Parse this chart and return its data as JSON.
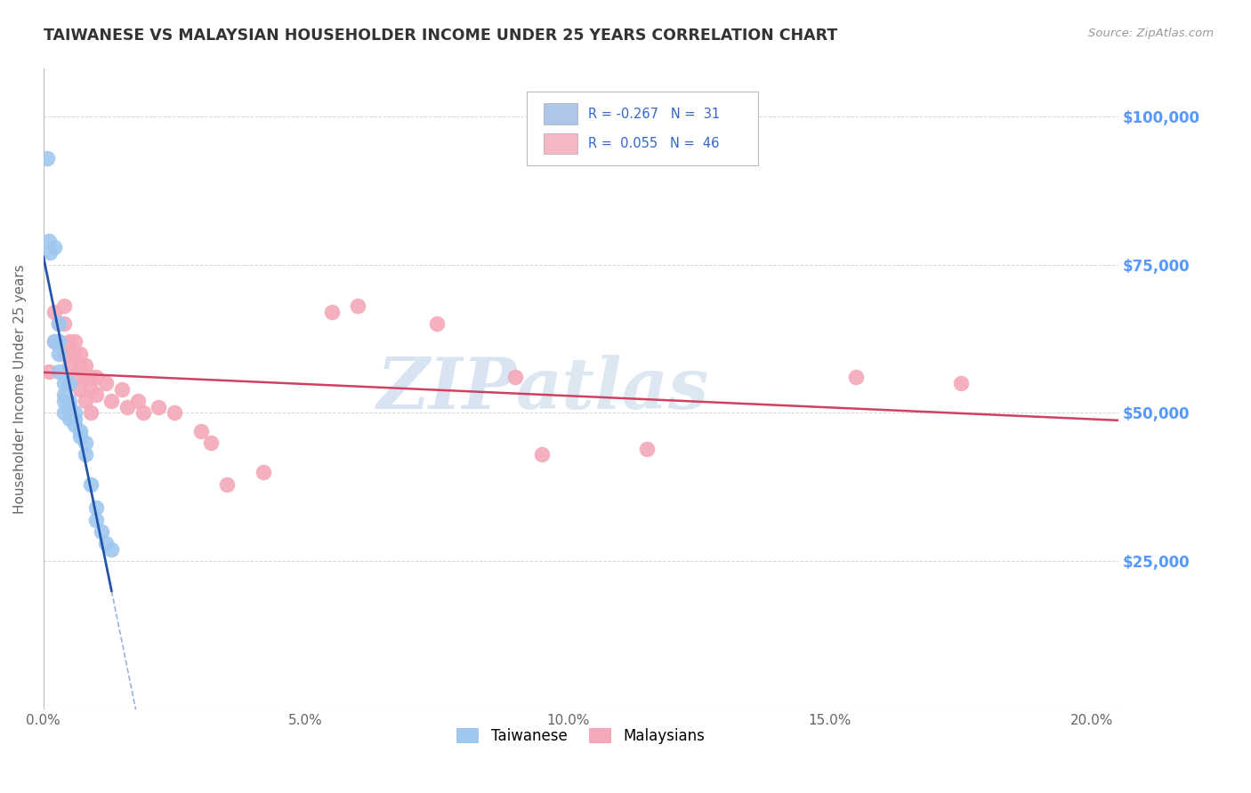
{
  "title": "TAIWANESE VS MALAYSIAN HOUSEHOLDER INCOME UNDER 25 YEARS CORRELATION CHART",
  "source": "Source: ZipAtlas.com",
  "ylabel": "Householder Income Under 25 years",
  "xlabel_ticks": [
    "0.0%",
    "5.0%",
    "10.0%",
    "15.0%",
    "20.0%"
  ],
  "xlabel_vals": [
    0.0,
    0.05,
    0.1,
    0.15,
    0.2
  ],
  "ylabel_ticks": [
    "$25,000",
    "$50,000",
    "$75,000",
    "$100,000"
  ],
  "ylabel_vals": [
    25000,
    50000,
    75000,
    100000
  ],
  "xlim": [
    0.0,
    0.205
  ],
  "ylim": [
    0,
    108000
  ],
  "watermark_zip": "ZIP",
  "watermark_atlas": "atlas",
  "legend_bottom": [
    "Taiwanese",
    "Malaysians"
  ],
  "taiwanese_x": [
    0.0008,
    0.001,
    0.0012,
    0.002,
    0.002,
    0.003,
    0.003,
    0.003,
    0.003,
    0.004,
    0.004,
    0.004,
    0.004,
    0.005,
    0.005,
    0.005,
    0.005,
    0.005,
    0.006,
    0.006,
    0.006,
    0.007,
    0.007,
    0.008,
    0.008,
    0.009,
    0.01,
    0.01,
    0.011,
    0.012,
    0.013
  ],
  "taiwanese_y": [
    93000,
    79000,
    77000,
    78000,
    62000,
    65000,
    62000,
    60000,
    57000,
    55000,
    53000,
    52000,
    50000,
    55000,
    52000,
    51000,
    50000,
    49000,
    50000,
    49000,
    48000,
    47000,
    46000,
    45000,
    43000,
    38000,
    34000,
    32000,
    30000,
    28000,
    27000
  ],
  "malaysian_x": [
    0.001,
    0.002,
    0.002,
    0.003,
    0.003,
    0.004,
    0.004,
    0.004,
    0.005,
    0.005,
    0.005,
    0.005,
    0.006,
    0.006,
    0.006,
    0.007,
    0.007,
    0.007,
    0.008,
    0.008,
    0.008,
    0.009,
    0.009,
    0.009,
    0.01,
    0.01,
    0.012,
    0.013,
    0.015,
    0.016,
    0.018,
    0.019,
    0.022,
    0.025,
    0.03,
    0.032,
    0.035,
    0.042,
    0.055,
    0.06,
    0.075,
    0.09,
    0.095,
    0.115,
    0.155,
    0.175
  ],
  "malaysian_y": [
    57000,
    67000,
    62000,
    65000,
    62000,
    68000,
    65000,
    60000,
    62000,
    60000,
    58000,
    55000,
    62000,
    60000,
    56000,
    60000,
    58000,
    54000,
    58000,
    56000,
    52000,
    56000,
    54000,
    50000,
    56000,
    53000,
    55000,
    52000,
    54000,
    51000,
    52000,
    50000,
    51000,
    50000,
    47000,
    45000,
    38000,
    40000,
    67000,
    68000,
    65000,
    56000,
    43000,
    44000,
    56000,
    55000
  ],
  "tw_color": "#9fc8ef",
  "my_color": "#f4a8b8",
  "tw_line_color": "#2255aa",
  "my_line_color": "#d04060",
  "tw_line_solid_end": 0.013,
  "tw_line_dash_end": 0.1,
  "my_line_start": 0.0,
  "my_line_end": 0.205,
  "background_color": "#ffffff",
  "grid_color": "#cccccc",
  "title_color": "#333333",
  "source_color": "#999999",
  "right_label_color": "#5599ff",
  "legend_box_color": "#aaaaaa",
  "tw_legend_color": "#aec6e8",
  "my_legend_color": "#f4b8c4",
  "legend_text_color": "#3366cc"
}
